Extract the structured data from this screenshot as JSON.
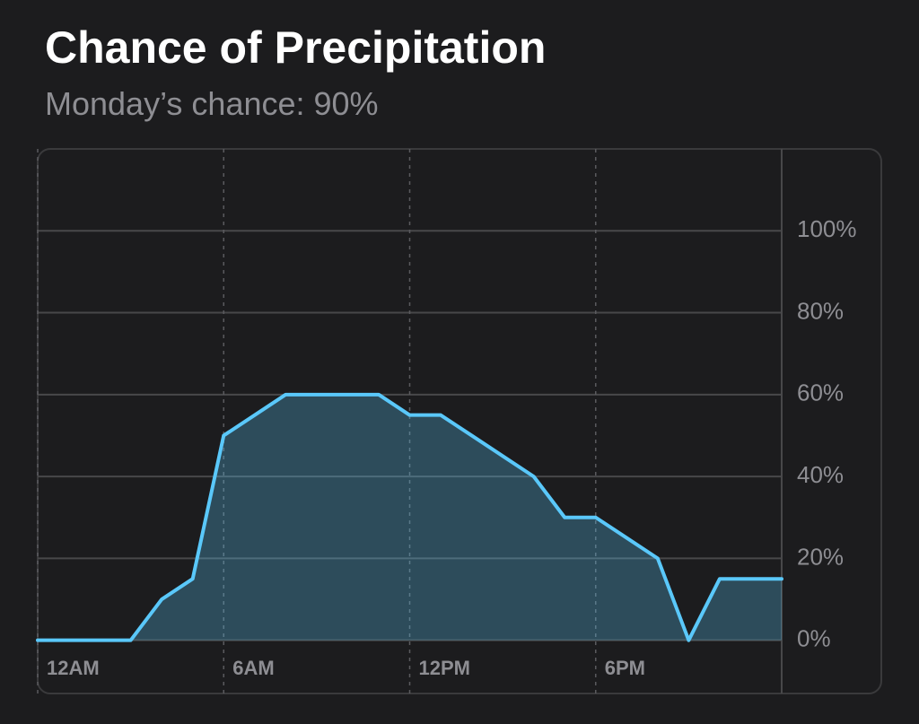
{
  "chart_data": {
    "type": "area",
    "title": "Chance of Precipitation",
    "subtitle": "Monday’s chance: 90%",
    "x": [
      0,
      1,
      2,
      3,
      4,
      5,
      6,
      7,
      8,
      9,
      10,
      11,
      12,
      13,
      14,
      15,
      16,
      17,
      18,
      19,
      20,
      21,
      22,
      23,
      24
    ],
    "values": [
      0,
      0,
      0,
      0,
      10,
      15,
      50,
      55,
      60,
      60,
      60,
      60,
      55,
      55,
      50,
      45,
      40,
      30,
      30,
      25,
      20,
      0,
      15,
      15,
      15
    ],
    "color": "#5ac8fa",
    "grid": true,
    "xlim": [
      0,
      24
    ],
    "xticks": [
      {
        "value": 0,
        "label": "12AM"
      },
      {
        "value": 6,
        "label": "6AM"
      },
      {
        "value": 12,
        "label": "12PM"
      },
      {
        "value": 18,
        "label": "6PM"
      }
    ],
    "ylim": [
      -13,
      120
    ],
    "yticks": [
      {
        "value": 0,
        "label": "0%"
      },
      {
        "value": 20,
        "label": "20%"
      },
      {
        "value": 40,
        "label": "40%"
      },
      {
        "value": 60,
        "label": "60%"
      },
      {
        "value": 80,
        "label": "80%"
      },
      {
        "value": 100,
        "label": "100%"
      }
    ]
  }
}
